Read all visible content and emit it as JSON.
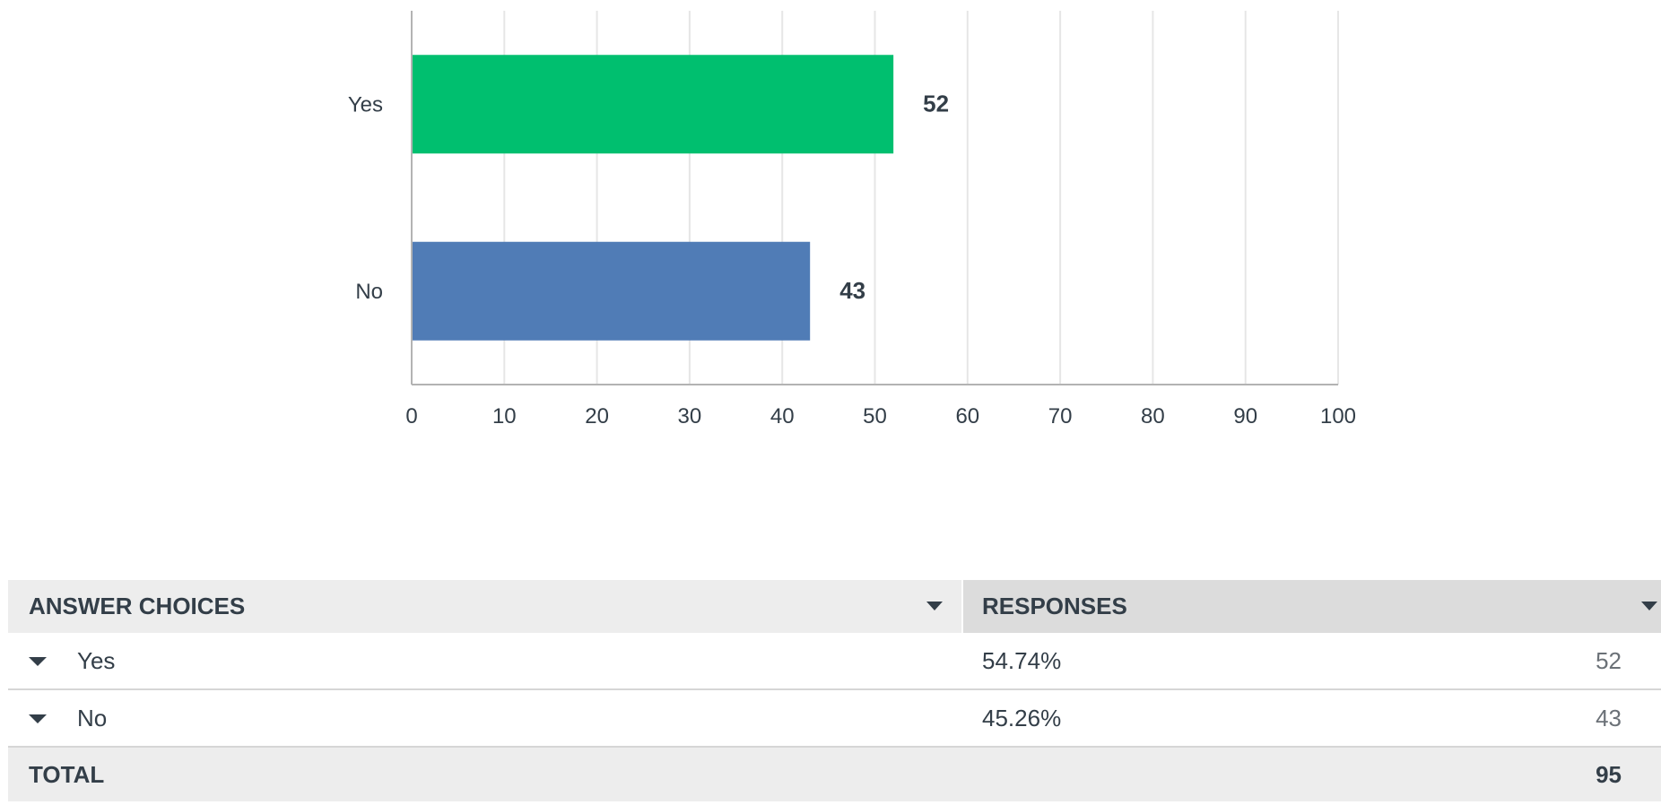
{
  "chart_data": {
    "type": "bar",
    "orientation": "horizontal",
    "categories": [
      "Yes",
      "No"
    ],
    "values": [
      52,
      43
    ],
    "colors": [
      "#00bf6f",
      "#507cb6"
    ],
    "xlim": [
      0,
      100
    ],
    "xticks": [
      "0",
      "10",
      "20",
      "30",
      "40",
      "50",
      "60",
      "70",
      "80",
      "90",
      "100"
    ],
    "grid": true,
    "title": "",
    "xlabel": "",
    "ylabel": ""
  },
  "table": {
    "headers": {
      "answer": "ANSWER CHOICES",
      "responses": "RESPONSES"
    },
    "rows": [
      {
        "label": "Yes",
        "percent": "54.74%",
        "count": "52"
      },
      {
        "label": "No",
        "percent": "45.26%",
        "count": "43"
      }
    ],
    "total": {
      "label": "TOTAL",
      "value": "95"
    }
  }
}
